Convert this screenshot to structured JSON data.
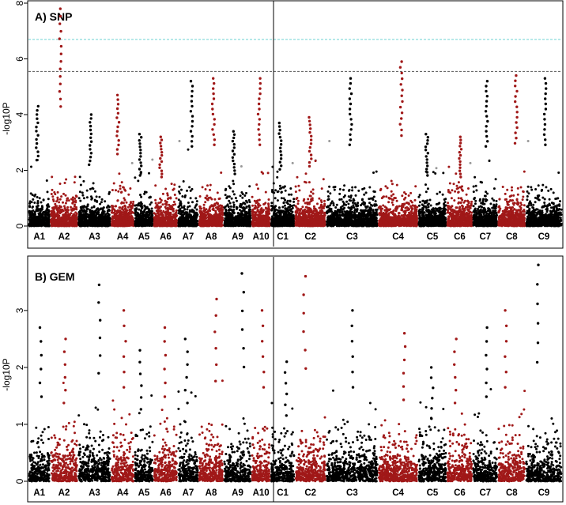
{
  "chart_data": [
    {
      "type": "scatter",
      "subtype": "manhattan",
      "title": "A) SNP",
      "ylabel": "-log10P",
      "ylim": [
        0,
        8
      ],
      "yticks": [
        0,
        2,
        4,
        6,
        8
      ],
      "chromosomes": [
        "A1",
        "A2",
        "A3",
        "A4",
        "A5",
        "A6",
        "A7",
        "A8",
        "A9",
        "A10",
        "C1",
        "C2",
        "C3",
        "C4",
        "C5",
        "C6",
        "C7",
        "C8",
        "C9"
      ],
      "genome_divider_after": "A10",
      "thresholds": [
        {
          "value": 6.7,
          "color": "#6fd4d4",
          "style": "dashed"
        },
        {
          "value": 5.55,
          "color": "#555555",
          "style": "dashed"
        }
      ],
      "series_colors": [
        "#000000",
        "#a01818"
      ],
      "nonsignificant_color": "#999999",
      "peaks": [
        {
          "chromosome": "A1",
          "value": 4.3
        },
        {
          "chromosome": "A2",
          "value": 7.8
        },
        {
          "chromosome": "A3",
          "value": 4.0
        },
        {
          "chromosome": "A4",
          "value": 4.7
        },
        {
          "chromosome": "A5",
          "value": 3.3
        },
        {
          "chromosome": "A6",
          "value": 3.2
        },
        {
          "chromosome": "A7",
          "value": 5.2
        },
        {
          "chromosome": "A8",
          "value": 5.3
        },
        {
          "chromosome": "A9",
          "value": 3.4
        },
        {
          "chromosome": "A10",
          "value": 5.3
        },
        {
          "chromosome": "C1",
          "value": 3.7
        },
        {
          "chromosome": "C2",
          "value": 3.9
        },
        {
          "chromosome": "C3",
          "value": 5.3
        },
        {
          "chromosome": "C4",
          "value": 5.9
        },
        {
          "chromosome": "C5",
          "value": 3.3
        },
        {
          "chromosome": "C6",
          "value": 3.2
        },
        {
          "chromosome": "C7",
          "value": 5.2
        },
        {
          "chromosome": "C8",
          "value": 5.4
        },
        {
          "chromosome": "C9",
          "value": 5.3
        }
      ]
    },
    {
      "type": "scatter",
      "subtype": "manhattan",
      "title": "B) GEM",
      "ylabel": "-log10P",
      "ylim": [
        0,
        3.9
      ],
      "yticks": [
        0,
        1,
        2,
        3
      ],
      "chromosomes": [
        "A1",
        "A2",
        "A3",
        "A4",
        "A5",
        "A6",
        "A7",
        "A8",
        "A9",
        "A10",
        "C1",
        "C2",
        "C3",
        "C4",
        "C5",
        "C6",
        "C7",
        "C8",
        "C9"
      ],
      "genome_divider_after": "A10",
      "thresholds": [],
      "series_colors": [
        "#000000",
        "#a01818"
      ],
      "peaks": [
        {
          "chromosome": "A1",
          "value": 2.7
        },
        {
          "chromosome": "A2",
          "value": 2.5
        },
        {
          "chromosome": "A3",
          "value": 3.45
        },
        {
          "chromosome": "A4",
          "value": 3.0
        },
        {
          "chromosome": "A5",
          "value": 2.3
        },
        {
          "chromosome": "A6",
          "value": 2.7
        },
        {
          "chromosome": "A7",
          "value": 2.5
        },
        {
          "chromosome": "A8",
          "value": 3.2
        },
        {
          "chromosome": "A9",
          "value": 3.65
        },
        {
          "chromosome": "A10",
          "value": 3.0
        },
        {
          "chromosome": "C1",
          "value": 2.1
        },
        {
          "chromosome": "C2",
          "value": 3.6
        },
        {
          "chromosome": "C3",
          "value": 3.0
        },
        {
          "chromosome": "C4",
          "value": 2.6
        },
        {
          "chromosome": "C5",
          "value": 2.0
        },
        {
          "chromosome": "C6",
          "value": 2.5
        },
        {
          "chromosome": "C7",
          "value": 2.7
        },
        {
          "chromosome": "C8",
          "value": 3.0
        },
        {
          "chromosome": "C9",
          "value": 3.8
        }
      ]
    }
  ]
}
